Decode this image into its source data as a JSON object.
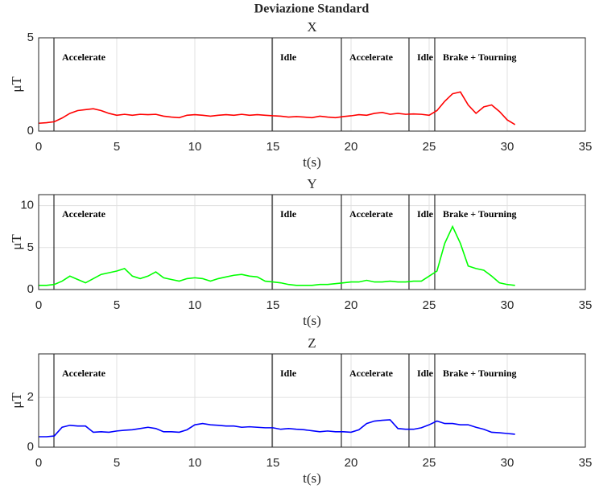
{
  "title": "Deviazione Standard",
  "chart_data": [
    {
      "type": "line",
      "title": "X",
      "xlabel": "t(s)",
      "ylabel": "μT",
      "xlim": [
        0,
        35
      ],
      "xticks": [
        0,
        5,
        10,
        15,
        20,
        25,
        30,
        35
      ],
      "ylim": [
        0,
        5
      ],
      "yticks": [
        0,
        5
      ],
      "grid": true,
      "annotations": [
        {
          "x": 0.98,
          "label": "Accelerate"
        },
        {
          "x": 14.95,
          "label": "Idle"
        },
        {
          "x": 19.38,
          "label": "Accelerate"
        },
        {
          "x": 23.71,
          "label": "Idle"
        },
        {
          "x": 25.36,
          "label": "Brake + Tourning"
        }
      ],
      "x": [
        0,
        0.5,
        1,
        1.5,
        2,
        2.5,
        3,
        3.5,
        4,
        4.5,
        5,
        5.5,
        6,
        6.5,
        7,
        7.5,
        8,
        8.5,
        9,
        9.5,
        10,
        10.5,
        11,
        11.5,
        12,
        12.5,
        13,
        13.5,
        14,
        14.5,
        15,
        15.5,
        16,
        16.5,
        17,
        17.5,
        18,
        18.5,
        19,
        19.5,
        20,
        20.5,
        21,
        21.5,
        22,
        22.5,
        23,
        23.5,
        24,
        24.5,
        25,
        25.5,
        26,
        26.5,
        27,
        27.5,
        28,
        28.5,
        29,
        29.5,
        30,
        30.5
      ],
      "series": [
        {
          "color": "#ff0000",
          "values": [
            0.42,
            0.45,
            0.5,
            0.7,
            0.95,
            1.1,
            1.15,
            1.2,
            1.1,
            0.95,
            0.85,
            0.9,
            0.85,
            0.9,
            0.88,
            0.9,
            0.8,
            0.75,
            0.72,
            0.85,
            0.88,
            0.85,
            0.8,
            0.85,
            0.88,
            0.85,
            0.9,
            0.85,
            0.88,
            0.85,
            0.82,
            0.8,
            0.75,
            0.78,
            0.75,
            0.72,
            0.8,
            0.75,
            0.72,
            0.78,
            0.82,
            0.88,
            0.85,
            0.95,
            1.0,
            0.9,
            0.95,
            0.9,
            0.92,
            0.9,
            0.85,
            1.1,
            1.6,
            2.0,
            2.1,
            1.4,
            0.95,
            1.3,
            1.4,
            1.05,
            0.6,
            0.35
          ]
        }
      ]
    },
    {
      "type": "line",
      "title": "Y",
      "xlabel": "t(s)",
      "ylabel": "μT",
      "xlim": [
        0,
        35
      ],
      "xticks": [
        0,
        5,
        10,
        15,
        20,
        25,
        30,
        35
      ],
      "ylim": [
        0,
        11.3
      ],
      "yticks": [
        0,
        5,
        10
      ],
      "grid": true,
      "annotations": [
        {
          "x": 0.98,
          "label": "Accelerate"
        },
        {
          "x": 14.95,
          "label": "Idle"
        },
        {
          "x": 19.38,
          "label": "Accelerate"
        },
        {
          "x": 23.71,
          "label": "Idle"
        },
        {
          "x": 25.36,
          "label": "Brake + Tourning"
        }
      ],
      "x": [
        0,
        0.5,
        1,
        1.5,
        2,
        2.5,
        3,
        3.5,
        4,
        4.5,
        5,
        5.5,
        6,
        6.5,
        7,
        7.5,
        8,
        8.5,
        9,
        9.5,
        10,
        10.5,
        11,
        11.5,
        12,
        12.5,
        13,
        13.5,
        14,
        14.5,
        15,
        15.5,
        16,
        16.5,
        17,
        17.5,
        18,
        18.5,
        19,
        19.5,
        20,
        20.5,
        21,
        21.5,
        22,
        22.5,
        23,
        23.5,
        24,
        24.5,
        25,
        25.5,
        26,
        26.5,
        27,
        27.5,
        28,
        28.5,
        29,
        29.5,
        30,
        30.5
      ],
      "series": [
        {
          "color": "#00ff00",
          "values": [
            0.5,
            0.5,
            0.6,
            1.0,
            1.6,
            1.2,
            0.8,
            1.3,
            1.8,
            2.0,
            2.2,
            2.5,
            1.6,
            1.3,
            1.6,
            2.1,
            1.4,
            1.2,
            1.0,
            1.3,
            1.4,
            1.3,
            1.0,
            1.3,
            1.5,
            1.7,
            1.8,
            1.6,
            1.5,
            1.0,
            0.9,
            0.8,
            0.6,
            0.5,
            0.5,
            0.5,
            0.6,
            0.6,
            0.7,
            0.8,
            0.9,
            0.9,
            1.1,
            0.9,
            0.9,
            1.0,
            0.9,
            0.9,
            1.0,
            1.0,
            1.6,
            2.2,
            5.5,
            7.5,
            5.5,
            2.8,
            2.5,
            2.3,
            1.6,
            0.8,
            0.6,
            0.5
          ]
        }
      ]
    },
    {
      "type": "line",
      "title": "Z",
      "xlabel": "t(s)",
      "ylabel": "μT",
      "xlim": [
        0,
        35
      ],
      "xticks": [
        0,
        5,
        10,
        15,
        20,
        25,
        30,
        35
      ],
      "ylim": [
        0,
        3.75
      ],
      "yticks": [
        0,
        2
      ],
      "grid": true,
      "annotations": [
        {
          "x": 0.98,
          "label": "Accelerate"
        },
        {
          "x": 14.95,
          "label": "Idle"
        },
        {
          "x": 19.38,
          "label": "Accelerate"
        },
        {
          "x": 23.71,
          "label": "Idle"
        },
        {
          "x": 25.36,
          "label": "Brake + Tourning"
        }
      ],
      "x": [
        0,
        0.5,
        1,
        1.5,
        2,
        2.5,
        3,
        3.5,
        4,
        4.5,
        5,
        5.5,
        6,
        6.5,
        7,
        7.5,
        8,
        8.5,
        9,
        9.5,
        10,
        10.5,
        11,
        11.5,
        12,
        12.5,
        13,
        13.5,
        14,
        14.5,
        15,
        15.5,
        16,
        16.5,
        17,
        17.5,
        18,
        18.5,
        19,
        19.5,
        20,
        20.5,
        21,
        21.5,
        22,
        22.5,
        23,
        23.5,
        24,
        24.5,
        25,
        25.5,
        26,
        26.5,
        27,
        27.5,
        28,
        28.5,
        29,
        29.5,
        30,
        30.5
      ],
      "series": [
        {
          "color": "#0000ff",
          "values": [
            0.42,
            0.42,
            0.45,
            0.8,
            0.88,
            0.85,
            0.85,
            0.6,
            0.62,
            0.6,
            0.65,
            0.68,
            0.7,
            0.75,
            0.8,
            0.75,
            0.62,
            0.62,
            0.6,
            0.7,
            0.9,
            0.95,
            0.9,
            0.88,
            0.85,
            0.85,
            0.8,
            0.82,
            0.8,
            0.78,
            0.78,
            0.72,
            0.75,
            0.72,
            0.7,
            0.66,
            0.62,
            0.65,
            0.62,
            0.62,
            0.6,
            0.7,
            0.95,
            1.05,
            1.08,
            1.1,
            0.75,
            0.72,
            0.72,
            0.78,
            0.9,
            1.05,
            0.95,
            0.95,
            0.9,
            0.9,
            0.8,
            0.72,
            0.6,
            0.58,
            0.55,
            0.52
          ]
        }
      ]
    }
  ]
}
